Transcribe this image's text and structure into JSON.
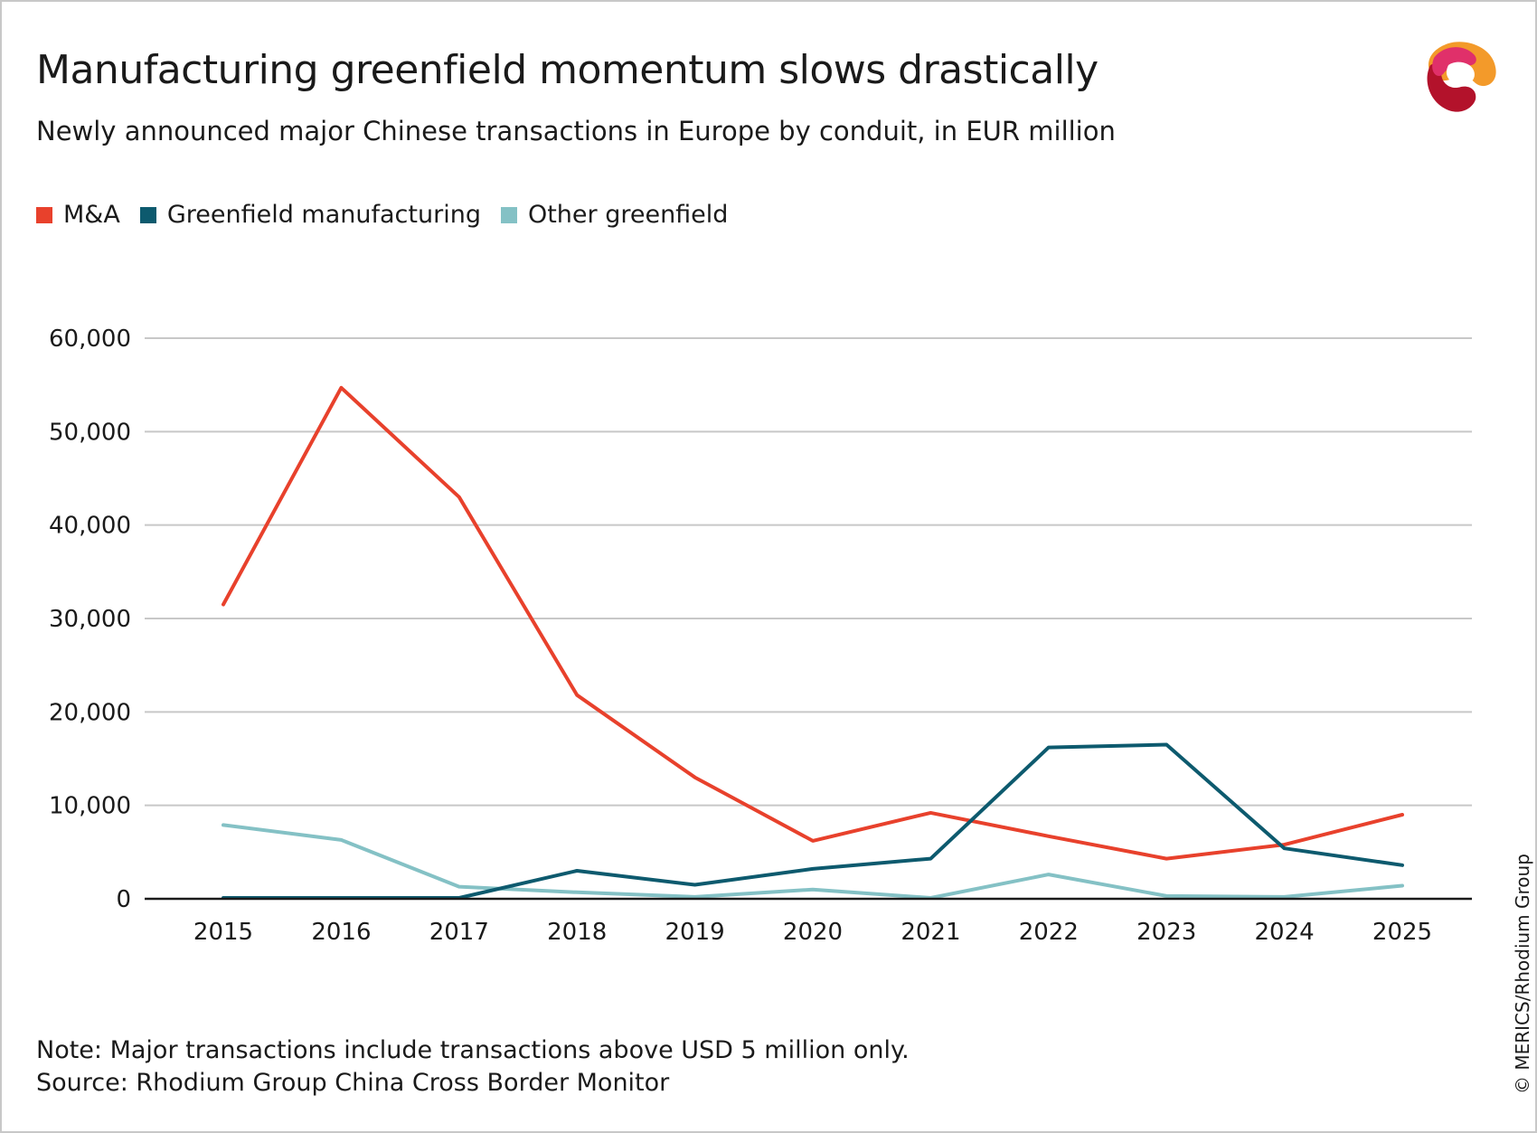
{
  "header": {
    "title": "Manufacturing greenfield momentum slows drastically",
    "subtitle": "Newly announced major Chinese transactions in Europe by conduit, in EUR million"
  },
  "footer": {
    "note": "Note: Major transactions include transactions above USD 5 million only.",
    "source": "Source: Rhodium Group China Cross Border Monitor",
    "copyright": "© MERICS/Rhodium Group"
  },
  "logo": {
    "icon": "merics-logo-icon"
  },
  "chart_data": {
    "type": "line",
    "title": "Manufacturing greenfield momentum slows drastically",
    "subtitle": "Newly announced major Chinese transactions in Europe by conduit, in EUR million",
    "x": [
      "2015",
      "2016",
      "2017",
      "2018",
      "2019",
      "2020",
      "2021",
      "2022",
      "2023",
      "2024",
      "2025"
    ],
    "y_ticks": [
      0,
      10000,
      20000,
      30000,
      40000,
      50000,
      60000
    ],
    "y_tick_labels": [
      "0",
      "10,000",
      "20,000",
      "30,000",
      "40,000",
      "50,000",
      "60,000"
    ],
    "ylim": [
      0,
      60000
    ],
    "grid": true,
    "legend_position": "top-left",
    "series": [
      {
        "name": "M&A",
        "color": "#e8412c",
        "values": [
          31500,
          54700,
          43000,
          21800,
          13000,
          6200,
          9200,
          6700,
          4300,
          5800,
          9000
        ]
      },
      {
        "name": "Greenfield manufacturing",
        "color": "#0d5a6e",
        "values": [
          100,
          100,
          100,
          3000,
          1500,
          3200,
          4300,
          16200,
          16500,
          5400,
          3600
        ]
      },
      {
        "name": "Other greenfield",
        "color": "#84c1c5",
        "values": [
          7900,
          6300,
          1300,
          700,
          200,
          1000,
          100,
          2600,
          300,
          200,
          1400
        ]
      }
    ]
  }
}
